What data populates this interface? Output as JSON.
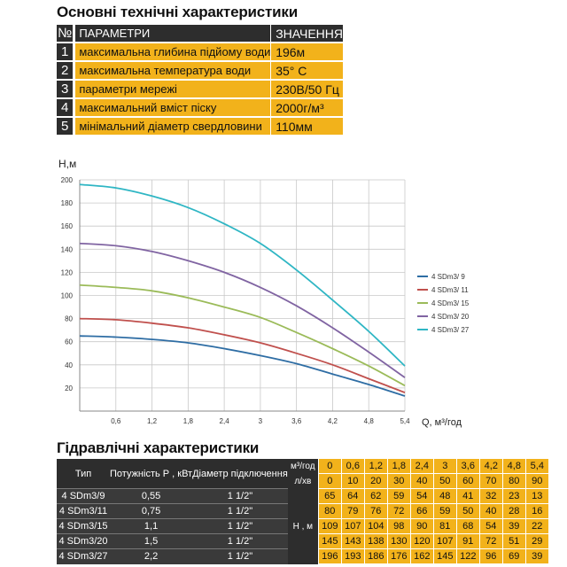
{
  "specs": {
    "title": "Основні технічні характеристики",
    "header": {
      "num": "№",
      "param": "ПАРАМЕТРИ",
      "value": "ЗНАЧЕННЯ"
    },
    "rows": [
      {
        "num": "1",
        "param": "максимальна глибина підйому води",
        "value": "196м"
      },
      {
        "num": "2",
        "param": "максимальна температура води",
        "value": "35° С"
      },
      {
        "num": "3",
        "param": "параметри мережі",
        "value": "230В/50 Гц"
      },
      {
        "num": "4",
        "param": "максимальний вміст піску",
        "value": "2000г/м³"
      },
      {
        "num": "5",
        "param": "мінімальний діаметр свердловини",
        "value": "110мм"
      }
    ]
  },
  "chart_data": {
    "type": "line",
    "xlabel": "Q, м³/год",
    "ylabel": "Н,м",
    "x": [
      0,
      0.6,
      1.2,
      1.8,
      2.4,
      3,
      3.6,
      4.2,
      4.8,
      5.4
    ],
    "x_ticks": [
      "0,6",
      "1,2",
      "1,8",
      "2,4",
      "3",
      "3,6",
      "4,2",
      "4,8",
      "5,4"
    ],
    "y_ticks": [
      "20",
      "40",
      "60",
      "80",
      "100",
      "120",
      "140",
      "160",
      "180",
      "200"
    ],
    "xlim": [
      0,
      5.4
    ],
    "ylim": [
      0,
      200
    ],
    "grid": true,
    "legend": "right",
    "series": [
      {
        "name": "4 SDm3/ 9",
        "color": "#2e6da4",
        "values": [
          65,
          64,
          62,
          59,
          54,
          48,
          41,
          32,
          23,
          13
        ]
      },
      {
        "name": "4 SDm3/ 11",
        "color": "#c0504d",
        "values": [
          80,
          79,
          76,
          72,
          66,
          59,
          50,
          40,
          28,
          16
        ]
      },
      {
        "name": "4 SDm3/ 15",
        "color": "#9bbb59",
        "values": [
          109,
          107,
          104,
          98,
          90,
          81,
          68,
          54,
          39,
          22
        ]
      },
      {
        "name": "4 SDm3/ 20",
        "color": "#8064a2",
        "values": [
          145,
          143,
          138,
          130,
          120,
          107,
          91,
          72,
          51,
          29
        ]
      },
      {
        "name": "4 SDm3/ 27",
        "color": "#2fb6c4",
        "values": [
          196,
          193,
          186,
          176,
          162,
          145,
          122,
          96,
          69,
          39
        ]
      }
    ]
  },
  "hydro": {
    "title": "Гідравлічні характеристики",
    "headers": {
      "type": "Тип",
      "power": "Потужність Р , кВт",
      "diameter": "Діаметр підключення"
    },
    "units": {
      "flow_m3": "м³/год",
      "flow_lmin": "л/хв",
      "head": "Н , м"
    },
    "q_m3": [
      "0",
      "0,6",
      "1,2",
      "1,8",
      "2,4",
      "3",
      "3,6",
      "4,2",
      "4,8",
      "5,4"
    ],
    "q_lmin": [
      "0",
      "10",
      "20",
      "30",
      "40",
      "50",
      "60",
      "70",
      "80",
      "90"
    ],
    "rows": [
      {
        "type": "4 SDm3/9",
        "power": "0,55",
        "diameter": "1 1/2\"",
        "values": [
          "65",
          "64",
          "62",
          "59",
          "54",
          "48",
          "41",
          "32",
          "23",
          "13"
        ]
      },
      {
        "type": "4 SDm3/11",
        "power": "0,75",
        "diameter": "1 1/2\"",
        "values": [
          "80",
          "79",
          "76",
          "72",
          "66",
          "59",
          "50",
          "40",
          "28",
          "16"
        ]
      },
      {
        "type": "4 SDm3/15",
        "power": "1,1",
        "diameter": "1 1/2\"",
        "values": [
          "109",
          "107",
          "104",
          "98",
          "90",
          "81",
          "68",
          "54",
          "39",
          "22"
        ]
      },
      {
        "type": "4 SDm3/20",
        "power": "1,5",
        "diameter": "1 1/2\"",
        "values": [
          "145",
          "143",
          "138",
          "130",
          "120",
          "107",
          "91",
          "72",
          "51",
          "29"
        ]
      },
      {
        "type": "4 SDm3/27",
        "power": "2,2",
        "diameter": "1 1/2\"",
        "values": [
          "196",
          "193",
          "186",
          "176",
          "162",
          "145",
          "122",
          "96",
          "69",
          "39"
        ]
      }
    ]
  }
}
